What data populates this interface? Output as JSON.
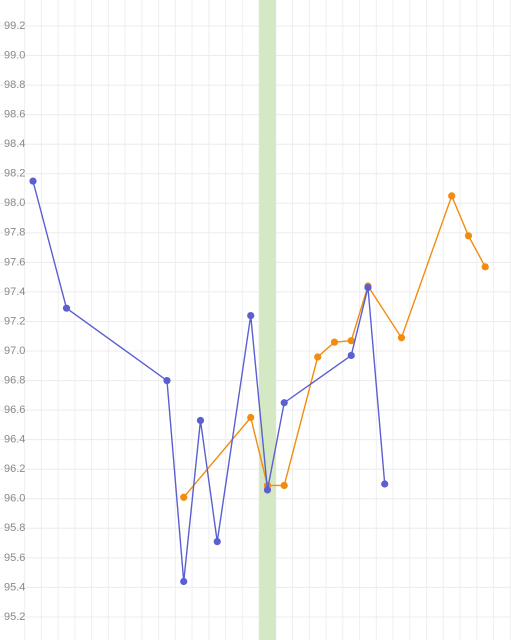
{
  "chart_data": {
    "type": "line",
    "ylim": [
      95.044,
      99.376
    ],
    "yticks": [
      95.2,
      95.4,
      95.6,
      95.8,
      {
        "value": 96.0,
        "label": "96.0"
      },
      96.2,
      96.4,
      96.6,
      96.8,
      {
        "value": 97.0,
        "label": "97.0"
      },
      97.2,
      97.4,
      97.6,
      97.8,
      {
        "value": 98.0,
        "label": "98.0"
      },
      98.2,
      98.4,
      98.6,
      98.8,
      {
        "value": 99.0,
        "label": "99.0"
      },
      99.2
    ],
    "xlim": [
      -0.97,
      29.54
    ],
    "highlight": [
      14.5,
      15.5
    ],
    "highlight_color": "#d5e8c4",
    "grid": true,
    "series": [
      {
        "color": "#f28c0f",
        "x": [
          10,
          14,
          15,
          16,
          18,
          19,
          20,
          21,
          23,
          26,
          27,
          28
        ],
        "values": [
          96.01,
          96.55,
          96.09,
          96.09,
          96.96,
          97.06,
          97.07,
          97.44,
          97.09,
          98.05,
          97.78,
          97.57
        ]
      },
      {
        "color": "#5b5fd0",
        "x": [
          1,
          3,
          9,
          10,
          11,
          12,
          14,
          15,
          16,
          20,
          21,
          22
        ],
        "values": [
          98.15,
          97.29,
          96.8,
          95.44,
          96.53,
          95.71,
          97.24,
          96.06,
          96.65,
          96.97,
          97.43,
          96.1
        ]
      }
    ]
  }
}
